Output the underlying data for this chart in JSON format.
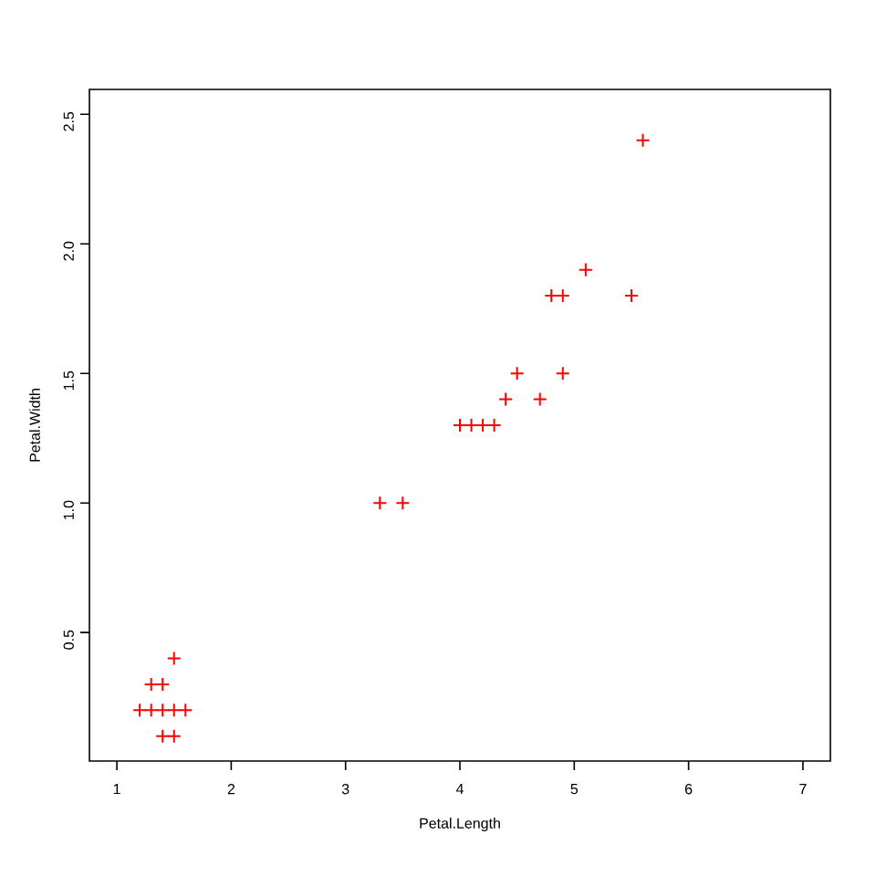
{
  "chart_data": {
    "type": "scatter",
    "xlabel": "Petal.Length",
    "ylabel": "Petal.Width",
    "xlim": [
      0.76,
      7.24
    ],
    "ylim": [
      0.004,
      2.596
    ],
    "xticks": [
      1,
      2,
      3,
      4,
      5,
      6,
      7
    ],
    "yticks": [
      0.5,
      {
        "value": 1,
        "label": "1.0"
      },
      1.5,
      {
        "value": 2,
        "label": "2.0"
      },
      2.5
    ],
    "marker": "cross",
    "x": [
      1.4,
      1.5,
      1.2,
      1.3,
      1.4,
      1.5,
      1.6,
      1.3,
      1.4,
      1.5,
      3.3,
      3.5,
      4.0,
      4.1,
      4.2,
      4.3,
      4.4,
      4.7,
      4.5,
      4.9,
      4.8,
      4.9,
      5.5,
      5.1,
      5.6
    ],
    "values": [
      0.1,
      0.1,
      0.2,
      0.2,
      0.2,
      0.2,
      0.2,
      0.3,
      0.3,
      0.4,
      1.0,
      1.0,
      1.3,
      1.3,
      1.3,
      1.3,
      1.4,
      1.4,
      1.5,
      1.5,
      1.8,
      1.8,
      1.8,
      1.9,
      2.4
    ],
    "color": "#ff0000"
  }
}
